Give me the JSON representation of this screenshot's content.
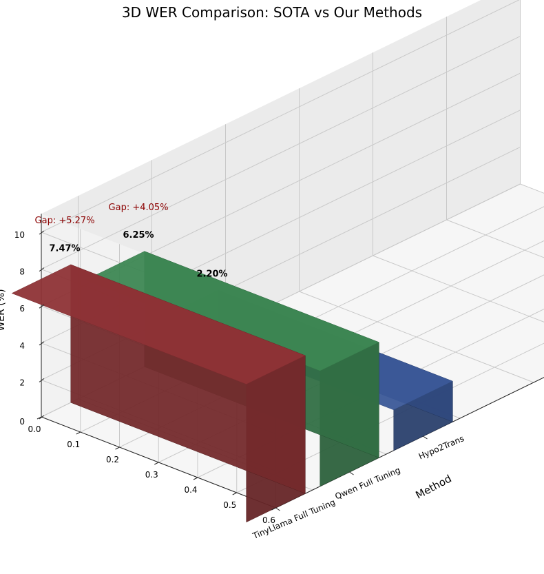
{
  "chart_data": {
    "type": "bar",
    "title": "3D WER Comparison: SOTA vs Our Methods",
    "xlabel": "Method",
    "zlabel": "WER (%)",
    "categories": [
      "Hypo2Trans",
      "Qwen Full Tuning",
      "TinyLlama Full Tuning"
    ],
    "values": [
      2.2,
      6.25,
      7.47
    ],
    "value_labels": [
      "2.20%",
      "6.25%",
      "7.47%"
    ],
    "colors": [
      "#3b5998",
      "#3d8753",
      "#8e3336"
    ],
    "gap_labels": [
      {
        "category": "Qwen Full Tuning",
        "text": "Gap: +4.05%"
      },
      {
        "category": "TinyLlama Full Tuning",
        "text": "Gap: +5.27%"
      }
    ],
    "y_ticks": [
      "0.0",
      "0.1",
      "0.2",
      "0.3",
      "0.4",
      "0.5",
      "0.6"
    ],
    "z_ticks": [
      "0",
      "2",
      "4",
      "6",
      "8",
      "10"
    ],
    "zlim": [
      0,
      11
    ],
    "grid": true
  }
}
